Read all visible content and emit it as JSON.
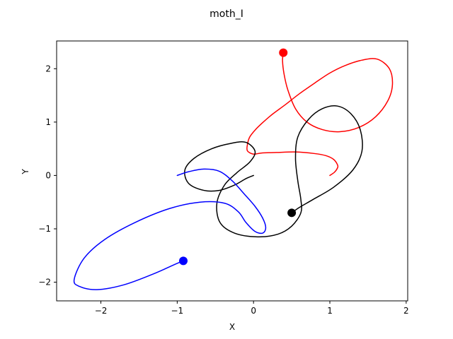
{
  "chart_data": {
    "type": "line",
    "title": "moth_I",
    "xlabel": "X",
    "ylabel": "Y",
    "xlim": [
      -2.58,
      2.02
    ],
    "ylim": [
      -2.35,
      2.52
    ],
    "x_ticks": [
      -2,
      -1,
      0,
      1,
      2
    ],
    "x_tick_labels": [
      "−2",
      "−1",
      "0",
      "1",
      "2"
    ],
    "y_ticks": [
      -2,
      -1,
      0,
      1,
      2
    ],
    "y_tick_labels": [
      "−2",
      "−1",
      "0",
      "1",
      "2"
    ],
    "grid": false,
    "legend": "none",
    "series": [
      {
        "color": "#ff0000",
        "x": [
          1.0,
          1.06,
          1.1,
          1.1,
          1.05,
          0.95,
          0.8,
          0.55,
          0.3,
          0.1,
          0.0,
          -0.08,
          -0.08,
          -0.05,
          0.02,
          0.12,
          0.25,
          0.42,
          0.6,
          0.8,
          1.0,
          1.2,
          1.42,
          1.62,
          1.78,
          1.82,
          1.76,
          1.6,
          1.38,
          1.13,
          0.9,
          0.7,
          0.55,
          0.45,
          0.4,
          0.38,
          0.39
        ],
        "y": [
          0.0,
          0.06,
          0.14,
          0.2,
          0.3,
          0.37,
          0.41,
          0.44,
          0.43,
          0.42,
          0.4,
          0.46,
          0.58,
          0.72,
          0.85,
          0.99,
          1.15,
          1.33,
          1.53,
          1.73,
          1.92,
          2.06,
          2.16,
          2.18,
          2.0,
          1.7,
          1.4,
          1.1,
          0.9,
          0.82,
          0.86,
          1.0,
          1.25,
          1.6,
          1.9,
          2.15,
          2.3
        ]
      },
      {
        "color": "#000000",
        "x": [
          0.0,
          -0.1,
          -0.25,
          -0.45,
          -0.65,
          -0.85,
          -0.9,
          -0.78,
          -0.55,
          -0.3,
          -0.1,
          0.02,
          -0.05,
          -0.22,
          -0.38,
          -0.48,
          -0.44,
          -0.25,
          0.05,
          0.32,
          0.5,
          0.62,
          0.62,
          0.58,
          0.55,
          0.58,
          0.72,
          0.9,
          1.1,
          1.28,
          1.4,
          1.42,
          1.3,
          1.05,
          0.78,
          0.6,
          0.5
        ],
        "y": [
          0.0,
          -0.06,
          -0.18,
          -0.28,
          -0.28,
          -0.15,
          0.1,
          0.32,
          0.5,
          0.6,
          0.62,
          0.45,
          0.25,
          0.05,
          -0.18,
          -0.52,
          -0.88,
          -1.08,
          -1.15,
          -1.1,
          -0.95,
          -0.7,
          -0.45,
          -0.1,
          0.32,
          0.72,
          1.05,
          1.25,
          1.3,
          1.15,
          0.85,
          0.45,
          0.1,
          -0.22,
          -0.45,
          -0.6,
          -0.7
        ]
      },
      {
        "color": "#0000ff",
        "x": [
          -1.0,
          -0.85,
          -0.65,
          -0.45,
          -0.28,
          -0.12,
          0.02,
          0.12,
          0.16,
          0.12,
          0.02,
          -0.1,
          -0.2,
          -0.38,
          -0.7,
          -1.1,
          -1.55,
          -1.95,
          -2.22,
          -2.35,
          -2.28,
          -2.05,
          -1.7,
          -1.32,
          -1.02,
          -0.92
        ],
        "y": [
          0.0,
          0.07,
          0.12,
          0.08,
          -0.1,
          -0.35,
          -0.58,
          -0.8,
          -0.98,
          -1.08,
          -1.05,
          -0.88,
          -0.68,
          -0.52,
          -0.5,
          -0.62,
          -0.88,
          -1.2,
          -1.55,
          -1.95,
          -2.08,
          -2.14,
          -2.05,
          -1.85,
          -1.66,
          -1.6
        ]
      }
    ],
    "markers": [
      {
        "color": "#ff0000",
        "x": 0.39,
        "y": 2.3
      },
      {
        "color": "#000000",
        "x": 0.5,
        "y": -0.7
      },
      {
        "color": "#0000ff",
        "x": -0.92,
        "y": -1.6
      }
    ]
  }
}
